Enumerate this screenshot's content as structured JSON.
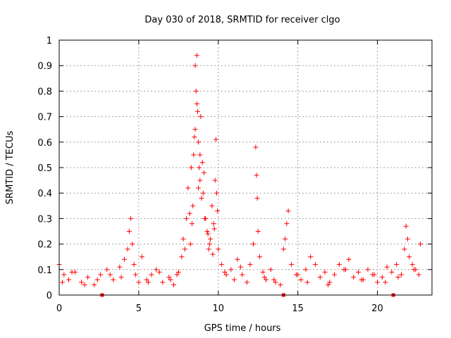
{
  "chart_data": {
    "type": "scatter",
    "title": "Day 030 of 2018, SRMTID for receiver clgo",
    "xlabel": "GPS time / hours",
    "ylabel": "SRMTID / TECUs",
    "xlim": [
      0,
      23.43
    ],
    "ylim": [
      0,
      1
    ],
    "x_ticks": [
      0,
      5,
      10,
      15,
      20
    ],
    "x_tick_labels": [
      "0",
      "5",
      "10",
      "15",
      "20"
    ],
    "y_ticks": [
      0,
      0.1,
      0.2,
      0.3,
      0.4,
      0.5,
      0.6,
      0.7,
      0.8,
      0.9,
      1
    ],
    "y_tick_labels": [
      "0",
      "0.1",
      "0.2",
      "0.3",
      "0.4",
      "0.5",
      "0.6",
      "0.7",
      "0.8",
      "0.9",
      "1"
    ],
    "grid": true,
    "marker": "+",
    "series_color": "#ff0000",
    "baseline_markers_x": [
      2.7,
      14.1,
      21.0
    ],
    "series": [
      {
        "name": "SRMTID",
        "x": [
          0.0,
          0.3,
          0.6,
          1.0,
          1.4,
          1.8,
          2.2,
          2.6,
          3.0,
          3.4,
          3.8,
          4.1,
          4.3,
          4.4,
          4.5,
          4.6,
          4.7,
          4.8,
          5.0,
          5.2,
          5.5,
          5.8,
          6.1,
          6.5,
          6.9,
          7.2,
          7.5,
          7.7,
          7.8,
          7.9,
          8.0,
          8.1,
          8.2,
          8.3,
          8.4,
          8.45,
          8.5,
          8.55,
          8.6,
          8.65,
          8.7,
          8.75,
          8.8,
          8.85,
          8.9,
          8.95,
          9.0,
          9.1,
          9.2,
          9.3,
          9.4,
          9.5,
          9.6,
          9.7,
          9.8,
          9.85,
          9.9,
          10.0,
          10.2,
          10.5,
          10.8,
          11.0,
          11.2,
          11.5,
          11.8,
          12.0,
          12.2,
          12.35,
          12.4,
          12.45,
          12.5,
          12.6,
          12.8,
          13.0,
          13.3,
          13.6,
          13.9,
          14.1,
          14.2,
          14.3,
          14.4,
          14.6,
          14.9,
          15.2,
          15.5,
          15.8,
          16.1,
          16.4,
          16.7,
          17.0,
          17.3,
          17.6,
          17.9,
          18.2,
          18.5,
          18.8,
          19.1,
          19.4,
          19.7,
          20.0,
          20.3,
          20.6,
          20.9,
          21.2,
          21.5,
          21.7,
          21.8,
          21.9,
          22.0,
          22.2,
          22.4,
          22.6,
          22.7,
          0.2,
          0.8,
          1.6,
          2.4,
          3.2,
          3.9,
          5.6,
          6.3,
          7.0,
          7.4,
          10.4,
          11.4,
          12.9,
          13.5,
          15.0,
          15.6,
          16.9,
          18.0,
          19.0,
          19.8,
          20.5,
          21.3,
          22.3,
          8.25,
          8.35,
          8.55,
          8.65,
          8.75,
          8.85,
          9.05,
          9.15,
          9.35,
          9.45,
          9.65,
          9.75,
          9.95
        ],
        "y": [
          0.12,
          0.08,
          0.06,
          0.09,
          0.05,
          0.07,
          0.04,
          0.08,
          0.1,
          0.06,
          0.11,
          0.14,
          0.18,
          0.25,
          0.3,
          0.2,
          0.12,
          0.08,
          0.05,
          0.15,
          0.06,
          0.08,
          0.1,
          0.05,
          0.07,
          0.04,
          0.09,
          0.15,
          0.22,
          0.18,
          0.3,
          0.42,
          0.32,
          0.5,
          0.35,
          0.55,
          0.62,
          0.9,
          0.8,
          0.94,
          0.72,
          0.6,
          0.5,
          0.45,
          0.7,
          0.38,
          0.52,
          0.48,
          0.3,
          0.25,
          0.18,
          0.22,
          0.35,
          0.28,
          0.45,
          0.61,
          0.4,
          0.18,
          0.12,
          0.08,
          0.1,
          0.06,
          0.14,
          0.08,
          0.05,
          0.12,
          0.2,
          0.58,
          0.47,
          0.38,
          0.25,
          0.15,
          0.09,
          0.06,
          0.1,
          0.05,
          0.04,
          0.18,
          0.22,
          0.28,
          0.33,
          0.12,
          0.08,
          0.06,
          0.1,
          0.15,
          0.12,
          0.07,
          0.09,
          0.05,
          0.08,
          0.12,
          0.1,
          0.14,
          0.07,
          0.09,
          0.06,
          0.1,
          0.08,
          0.05,
          0.07,
          0.11,
          0.09,
          0.12,
          0.08,
          0.18,
          0.27,
          0.22,
          0.15,
          0.12,
          0.1,
          0.08,
          0.2,
          0.05,
          0.09,
          0.04,
          0.06,
          0.08,
          0.07,
          0.05,
          0.09,
          0.06,
          0.08,
          0.09,
          0.11,
          0.07,
          0.06,
          0.08,
          0.05,
          0.04,
          0.1,
          0.06,
          0.08,
          0.05,
          0.07,
          0.1,
          0.2,
          0.28,
          0.65,
          0.75,
          0.42,
          0.55,
          0.4,
          0.3,
          0.24,
          0.2,
          0.16,
          0.26,
          0.33
        ]
      }
    ]
  }
}
